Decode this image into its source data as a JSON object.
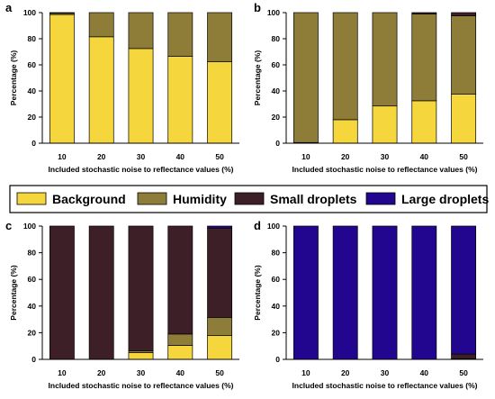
{
  "colors": {
    "background": "#f5d63d",
    "humidity": "#8e7c39",
    "small_droplets": "#3d2027",
    "large_droplets": "#23068f"
  },
  "legend": {
    "items": [
      {
        "key": "background",
        "label": "Background"
      },
      {
        "key": "humidity",
        "label": "Humidity"
      },
      {
        "key": "small_droplets",
        "label": "Small droplets"
      },
      {
        "key": "large_droplets",
        "label": "Large droplets"
      }
    ]
  },
  "chart_data": [
    {
      "panel": "a",
      "type": "bar",
      "stacked": true,
      "categories": [
        "10",
        "20",
        "30",
        "40",
        "50"
      ],
      "xlabel": "Included stochastic noise to reflectance values (%)",
      "ylabel": "Percentage (%)",
      "ylim": [
        0,
        100
      ],
      "yticks": [
        "0",
        "20",
        "40",
        "60",
        "80",
        "100"
      ],
      "series": [
        {
          "name": "Background",
          "key": "background",
          "values": [
            98.5,
            81.5,
            72.5,
            66.5,
            62.5
          ]
        },
        {
          "name": "Humidity",
          "key": "humidity",
          "values": [
            1.0,
            18.5,
            27.5,
            33.5,
            37.5
          ]
        },
        {
          "name": "Small droplets",
          "key": "small_droplets",
          "values": [
            0.5,
            0,
            0,
            0,
            0
          ]
        },
        {
          "name": "Large droplets",
          "key": "large_droplets",
          "values": [
            0,
            0,
            0,
            0,
            0
          ]
        }
      ]
    },
    {
      "panel": "b",
      "type": "bar",
      "stacked": true,
      "categories": [
        "10",
        "20",
        "30",
        "40",
        "50"
      ],
      "xlabel": "Included stochastic noise to reflectance values (%)",
      "ylabel": "Percentage (%)",
      "ylim": [
        0,
        100
      ],
      "yticks": [
        "0",
        "20",
        "40",
        "60",
        "80",
        "100"
      ],
      "series": [
        {
          "name": "Background",
          "key": "background",
          "values": [
            0.5,
            18,
            28.5,
            32.5,
            37.5
          ]
        },
        {
          "name": "Humidity",
          "key": "humidity",
          "values": [
            99.5,
            82,
            71.5,
            66.5,
            60
          ]
        },
        {
          "name": "Small droplets",
          "key": "small_droplets",
          "values": [
            0,
            0,
            0,
            1,
            2.5
          ]
        },
        {
          "name": "Large droplets",
          "key": "large_droplets",
          "values": [
            0,
            0,
            0,
            0,
            0
          ]
        }
      ]
    },
    {
      "panel": "c",
      "type": "bar",
      "stacked": true,
      "categories": [
        "10",
        "20",
        "30",
        "40",
        "50"
      ],
      "xlabel": "Included stochastic noise to reflectance values (%)",
      "ylabel": "Percentage (%)",
      "ylim": [
        0,
        100
      ],
      "yticks": [
        "0",
        "20",
        "40",
        "60",
        "80",
        "100"
      ],
      "series": [
        {
          "name": "Background",
          "key": "background",
          "values": [
            0,
            0,
            5,
            10.5,
            18
          ]
        },
        {
          "name": "Humidity",
          "key": "humidity",
          "values": [
            0,
            0,
            1.5,
            8.5,
            13.5
          ]
        },
        {
          "name": "Small droplets",
          "key": "small_droplets",
          "values": [
            100,
            100,
            93.5,
            81,
            67
          ]
        },
        {
          "name": "Large droplets",
          "key": "large_droplets",
          "values": [
            0,
            0,
            0,
            0,
            1.5
          ]
        }
      ]
    },
    {
      "panel": "d",
      "type": "bar",
      "stacked": true,
      "categories": [
        "10",
        "20",
        "30",
        "40",
        "50"
      ],
      "xlabel": "Included stochastic noise to reflectance values (%)",
      "ylabel": "Percentage (%)",
      "ylim": [
        0,
        100
      ],
      "yticks": [
        "0",
        "20",
        "40",
        "60",
        "80",
        "100"
      ],
      "series": [
        {
          "name": "Background",
          "key": "background",
          "values": [
            0,
            0,
            0,
            0,
            0
          ]
        },
        {
          "name": "Humidity",
          "key": "humidity",
          "values": [
            0,
            0,
            0,
            0,
            0.5
          ]
        },
        {
          "name": "Small droplets",
          "key": "small_droplets",
          "values": [
            0,
            0,
            0,
            0,
            3.5
          ]
        },
        {
          "name": "Large droplets",
          "key": "large_droplets",
          "values": [
            100,
            100,
            100,
            100,
            96
          ]
        }
      ]
    }
  ]
}
